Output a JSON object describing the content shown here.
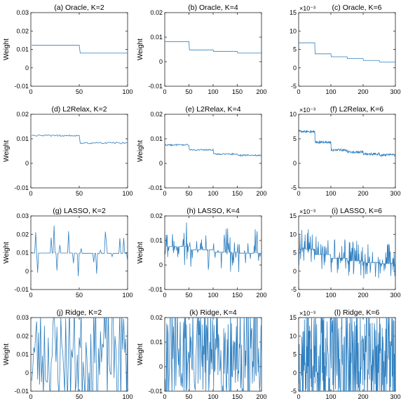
{
  "line_color": "#2f7fc0",
  "chart_data": [
    {
      "type": "line",
      "title": "(a) Oracle, K=2",
      "ylabel": "Weight",
      "xlim": [
        0,
        100
      ],
      "ylim": [
        -0.01,
        0.03
      ],
      "xticks": [
        "0",
        "50",
        "100"
      ],
      "yticks": [
        "-0.01",
        "0",
        "0.01",
        "0.02",
        "0.03"
      ],
      "exponent": "",
      "kind": "step",
      "steps": [
        [
          0,
          50,
          0.0123
        ],
        [
          50,
          100,
          0.008
        ]
      ],
      "noise": 0
    },
    {
      "type": "line",
      "title": "(b) Oracle, K=4",
      "ylabel": "Weight",
      "xlim": [
        0,
        200
      ],
      "ylim": [
        -0.01,
        0.02
      ],
      "xticks": [
        "0",
        "50",
        "100",
        "150",
        "200"
      ],
      "yticks": [
        "-0.01",
        "0",
        "0.01",
        "0.02"
      ],
      "exponent": "",
      "kind": "step",
      "steps": [
        [
          0,
          50,
          0.0082
        ],
        [
          50,
          100,
          0.0048
        ],
        [
          100,
          150,
          0.0042
        ],
        [
          150,
          200,
          0.0035
        ]
      ],
      "noise": 0
    },
    {
      "type": "line",
      "title": "(c) Oracle, K=6",
      "ylabel": "",
      "xlim": [
        0,
        300
      ],
      "ylim": [
        -5,
        15
      ],
      "xticks": [
        "0",
        "100",
        "200",
        "300"
      ],
      "yticks": [
        "-5",
        "0",
        "5",
        "10",
        "15"
      ],
      "exponent": "×10⁻³",
      "kind": "step",
      "steps": [
        [
          0,
          50,
          6.8
        ],
        [
          50,
          100,
          3.8
        ],
        [
          100,
          150,
          3.0
        ],
        [
          150,
          200,
          2.5
        ],
        [
          200,
          250,
          2.0
        ],
        [
          250,
          300,
          1.6
        ]
      ],
      "noise": 0
    },
    {
      "type": "line",
      "title": "(d) L2Relax, K=2",
      "ylabel": "Weight",
      "xlim": [
        0,
        100
      ],
      "ylim": [
        -0.01,
        0.02
      ],
      "xticks": [
        "0",
        "50",
        "100"
      ],
      "yticks": [
        "-0.01",
        "0",
        "0.01",
        "0.02"
      ],
      "exponent": "",
      "kind": "step",
      "steps": [
        [
          0,
          50,
          0.0113
        ],
        [
          50,
          100,
          0.0083
        ]
      ],
      "noise": 0.0007
    },
    {
      "type": "line",
      "title": "(e) L2Relax, K=4",
      "ylabel": "Weight",
      "xlim": [
        0,
        200
      ],
      "ylim": [
        -0.01,
        0.02
      ],
      "xticks": [
        "0",
        "50",
        "100",
        "150",
        "200"
      ],
      "yticks": [
        "-0.01",
        "0",
        "0.01",
        "0.02"
      ],
      "exponent": "",
      "kind": "step",
      "steps": [
        [
          0,
          50,
          0.0075
        ],
        [
          50,
          100,
          0.0055
        ],
        [
          100,
          150,
          0.0038
        ],
        [
          150,
          200,
          0.0033
        ]
      ],
      "noise": 0.0006
    },
    {
      "type": "line",
      "title": "(f) L2Relax, K=6",
      "ylabel": "",
      "xlim": [
        0,
        300
      ],
      "ylim": [
        -5,
        10
      ],
      "xticks": [
        "0",
        "100",
        "200",
        "300"
      ],
      "yticks": [
        "-5",
        "0",
        "5",
        "10"
      ],
      "exponent": "×10⁻³",
      "kind": "step",
      "steps": [
        [
          0,
          50,
          6.5
        ],
        [
          50,
          100,
          4.3
        ],
        [
          100,
          150,
          2.7
        ],
        [
          150,
          200,
          2.3
        ],
        [
          200,
          250,
          1.9
        ],
        [
          250,
          300,
          1.7
        ]
      ],
      "noise": 0.5
    },
    {
      "type": "line",
      "title": "(g) LASSO, K=2",
      "ylabel": "Weight",
      "xlim": [
        0,
        100
      ],
      "ylim": [
        -0.01,
        0.03
      ],
      "xticks": [
        "0",
        "50",
        "100"
      ],
      "yticks": [
        "-0.01",
        "0",
        "0.01",
        "0.02",
        "0.03"
      ],
      "exponent": "",
      "kind": "sparse",
      "base": [
        [
          0,
          50,
          0.0098
        ],
        [
          50,
          100,
          0.0097
        ]
      ],
      "amp": 0.014,
      "prob": 0.22,
      "seed": 7
    },
    {
      "type": "line",
      "title": "(h) LASSO, K=4",
      "ylabel": "Weight",
      "xlim": [
        0,
        200
      ],
      "ylim": [
        -0.01,
        0.02
      ],
      "xticks": [
        "0",
        "50",
        "100",
        "150",
        "200"
      ],
      "yticks": [
        "-0.01",
        "0",
        "0.01",
        "0.02"
      ],
      "exponent": "",
      "kind": "sparse",
      "base": [
        [
          0,
          50,
          0.0075
        ],
        [
          50,
          100,
          0.0062
        ],
        [
          100,
          150,
          0.0052
        ],
        [
          150,
          200,
          0.0048
        ]
      ],
      "amp": 0.009,
      "prob": 0.3,
      "seed": 11
    },
    {
      "type": "line",
      "title": "(i) LASSO, K=6",
      "ylabel": "",
      "xlim": [
        0,
        300
      ],
      "ylim": [
        -5,
        15
      ],
      "xticks": [
        "0",
        "100",
        "200",
        "300"
      ],
      "yticks": [
        "-5",
        "0",
        "5",
        "10",
        "15"
      ],
      "exponent": "×10⁻³",
      "kind": "sparse",
      "base": [
        [
          0,
          50,
          6
        ],
        [
          50,
          100,
          4.5
        ],
        [
          100,
          150,
          3.5
        ],
        [
          150,
          200,
          2.8
        ],
        [
          200,
          250,
          2.3
        ],
        [
          250,
          300,
          2
        ]
      ],
      "amp": 5,
      "prob": 0.35,
      "seed": 19
    },
    {
      "type": "line",
      "title": "(j) Ridge, K=2",
      "ylabel": "Weight",
      "xlim": [
        0,
        100
      ],
      "ylim": [
        -0.01,
        0.03
      ],
      "xticks": [
        "0",
        "50",
        "100"
      ],
      "yticks": [
        "-0.01",
        "0",
        "0.01",
        "0.02",
        "0.03"
      ],
      "exponent": "",
      "kind": "noisy",
      "center": 0.01,
      "amp": 0.028,
      "seed": 23
    },
    {
      "type": "line",
      "title": "(k) Ridge, K=4",
      "ylabel": "Weight",
      "xlim": [
        0,
        200
      ],
      "ylim": [
        -0.01,
        0.02
      ],
      "xticks": [
        "0",
        "50",
        "100",
        "150",
        "200"
      ],
      "yticks": [
        "-0.01",
        "0",
        "0.01",
        "0.02"
      ],
      "exponent": "",
      "kind": "noisy",
      "center": 0.005,
      "amp": 0.02,
      "seed": 31
    },
    {
      "type": "line",
      "title": "(l) Ridge, K=6",
      "ylabel": "",
      "xlim": [
        0,
        300
      ],
      "ylim": [
        -5,
        15
      ],
      "xticks": [
        "0",
        "100",
        "200",
        "300"
      ],
      "yticks": [
        "-5",
        "0",
        "5",
        "10",
        "15"
      ],
      "exponent": "×10⁻³",
      "kind": "noisy",
      "center": 4,
      "amp": 14,
      "seed": 37
    }
  ]
}
